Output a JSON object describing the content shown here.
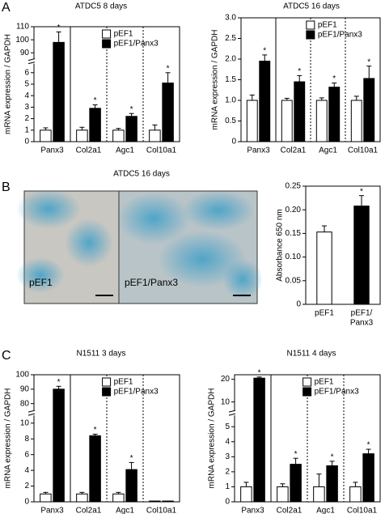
{
  "panels": [
    "A",
    "B",
    "C"
  ],
  "photos": {
    "title": "ATDC5 16 days",
    "labels": [
      "pEF1",
      "pEF1/Panx3"
    ]
  },
  "chart_data": [
    {
      "type": "bar",
      "title": "ATDC5 8 days",
      "y_label": "mRNA expression / GAPDH",
      "categories": [
        "Panx3",
        "Col2a1",
        "Agc1",
        "Col10a1"
      ],
      "series": [
        {
          "name": "pEF1",
          "color": "#ffffff",
          "values": [
            1.0,
            1.0,
            1.0,
            1.0
          ],
          "errors": [
            0.2,
            0.25,
            0.15,
            0.45
          ]
        },
        {
          "name": "pEF1/Panx3",
          "color": "#000000",
          "values": [
            98,
            2.9,
            2.2,
            5.1
          ],
          "errors": [
            8,
            0.3,
            0.25,
            0.9
          ],
          "markers": [
            "*",
            "*",
            "*",
            "*"
          ]
        }
      ],
      "ylim": [
        0,
        110
      ],
      "ybreak": [
        6.5,
        88
      ],
      "yticks": [
        0,
        1,
        2,
        3,
        4,
        5,
        6,
        90,
        100,
        110
      ]
    },
    {
      "type": "bar",
      "title": "ATDC5 16 days",
      "y_label": "mRNA expression / GAPDH",
      "categories": [
        "Panx3",
        "Col2a1",
        "Agc1",
        "Col10a1"
      ],
      "series": [
        {
          "name": "pEF1",
          "color": "#ffffff",
          "values": [
            1.0,
            1.0,
            1.0,
            1.0
          ],
          "errors": [
            0.13,
            0.05,
            0.06,
            0.1
          ]
        },
        {
          "name": "pEF1/Panx3",
          "color": "#000000",
          "values": [
            1.95,
            1.45,
            1.32,
            1.53
          ],
          "errors": [
            0.15,
            0.15,
            0.1,
            0.3
          ],
          "markers": [
            "*",
            "*",
            "*",
            "*"
          ]
        }
      ],
      "ylim": [
        0,
        3
      ],
      "yticks": [
        0,
        0.5,
        {
          "value": 1,
          "label": "1.0"
        },
        1.5,
        {
          "value": 2,
          "label": "2.0"
        },
        2.5,
        {
          "value": 3,
          "label": "3.0"
        }
      ]
    },
    {
      "type": "simplebar",
      "y_label": "Absorbance 650 nm",
      "categories": [
        [
          "pEF1"
        ],
        [
          "pEF1/",
          "Panx3"
        ]
      ],
      "values": [
        0.153,
        0.208
      ],
      "errors": [
        0.013,
        0.022
      ],
      "colors": [
        "#ffffff",
        "#000000"
      ],
      "markers": [
        null,
        "*"
      ],
      "ylim": [
        0,
        0.25
      ],
      "yticks": [
        0,
        0.05,
        {
          "value": 0.1,
          "label": "0.10"
        },
        0.15,
        {
          "value": 0.2,
          "label": "0.20"
        },
        0.25
      ]
    },
    {
      "type": "bar",
      "title": "N1511 3 days",
      "y_label": "mRNA expression / GAPDH",
      "categories": [
        "Panx3",
        "Col2a1",
        "Agc1",
        "Col10a1"
      ],
      "series": [
        {
          "name": "pEF1",
          "color": "#ffffff",
          "values": [
            1.0,
            1.0,
            1.0,
            0.1
          ],
          "errors": [
            0.2,
            0.2,
            0.2,
            0
          ]
        },
        {
          "name": "pEF1/Panx3",
          "color": "#000000",
          "values": [
            90,
            8.4,
            4.1,
            0.1
          ],
          "errors": [
            2,
            0.2,
            0.9,
            0
          ],
          "markers": [
            "*",
            "*",
            "*",
            null
          ]
        }
      ],
      "ylim": [
        0,
        100
      ],
      "ybreak": [
        10.5,
        78
      ],
      "yticks": [
        0,
        2,
        4,
        6,
        8,
        10,
        80,
        90,
        100
      ]
    },
    {
      "type": "bar",
      "title": "N1511 4 days",
      "y_label": "mRNA expression / GAPDH",
      "categories": [
        "Panx3",
        "Col2a1",
        "Agc1",
        "Col10a1"
      ],
      "series": [
        {
          "name": "pEF1",
          "color": "#ffffff",
          "values": [
            1.0,
            1.0,
            1.0,
            1.0
          ],
          "errors": [
            0.3,
            0.2,
            0.85,
            0.3
          ]
        },
        {
          "name": "pEF1/Panx3",
          "color": "#000000",
          "values": [
            20.5,
            2.5,
            2.4,
            3.2
          ],
          "errors": [
            0.5,
            0.4,
            0.3,
            0.3
          ],
          "markers": [
            "*",
            "*",
            "*",
            "*"
          ]
        }
      ],
      "ylim": [
        0,
        22
      ],
      "ybreak": [
        5.5,
        8
      ],
      "yticks": [
        0,
        1,
        2,
        3,
        4,
        5,
        10,
        20
      ]
    }
  ]
}
